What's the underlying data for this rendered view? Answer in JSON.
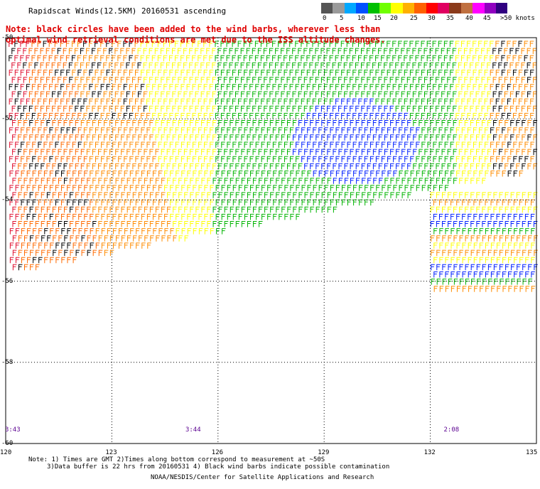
{
  "title": "Rapidscat Winds(12.5KM) 20160531 ascending",
  "note": "Note: black circles have been added to the wind barbs, wherever less than optimal wind retrieval conditions are met due to the ISS altitude changes.",
  "color_scale": {
    "labels": [
      "0",
      "5",
      "10",
      "15",
      "20",
      "25",
      "30",
      "35",
      "40",
      "45",
      ">50 knots"
    ],
    "colors": [
      "#555555",
      "#9a9a9a",
      "#00a8ff",
      "#0050ff",
      "#00c000",
      "#70ff00",
      "#ffff00",
      "#ffb000",
      "#ff6000",
      "#ff0000",
      "#e00060",
      "#8b3a1a",
      "#c07040",
      "#ff00ff",
      "#9000c0",
      "#300080"
    ]
  },
  "axes": {
    "lat_labels": [
      "-50",
      "-52",
      "-54",
      "-56",
      "-58",
      "-60"
    ],
    "lat_values": [
      -50,
      -52,
      -54,
      -56,
      -58,
      -60
    ],
    "lon_labels": [
      "120",
      "123",
      "126",
      "129",
      "132",
      "135"
    ],
    "lon_values": [
      120,
      123,
      126,
      129,
      132,
      135
    ]
  },
  "times": [
    {
      "label": "3:43",
      "lon": 120.1
    },
    {
      "label": "3:44",
      "lon": 125.2
    },
    {
      "label": "2:08",
      "lon": 132.5
    }
  ],
  "footnote_line1": "Note: 1) Times are GMT 2)Times along bottom correspond to measurement at ~50S",
  "footnote_line2": "3)Data buffer is 22 hrs from 20160531 4) Black wind barbs indicate possible contamination",
  "credit": "NOAA/NESDIS/Center for Satellite Applications and Research"
}
